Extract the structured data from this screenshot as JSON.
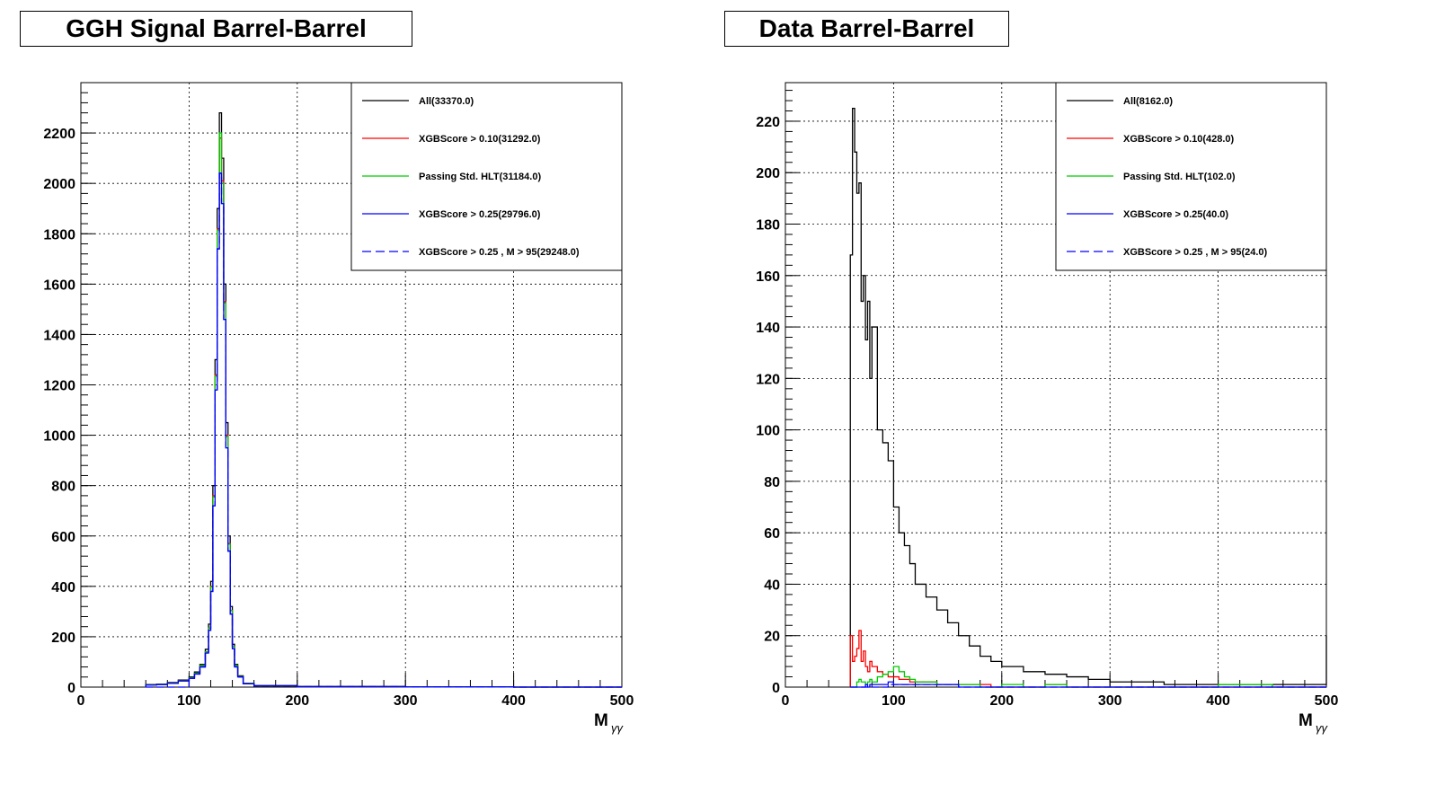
{
  "chart_data": [
    {
      "type": "line",
      "title": "GGH Signal Barrel-Barrel",
      "xlabel": "M",
      "xlabel_sub": "γγ",
      "xlim": [
        0,
        500
      ],
      "ylim": [
        0,
        2400
      ],
      "grid": true,
      "legend_position": "top-right",
      "x_ticks": [
        0,
        100,
        200,
        300,
        400,
        500
      ],
      "y_ticks": [
        0,
        200,
        400,
        600,
        800,
        1000,
        1200,
        1400,
        1600,
        1800,
        2000,
        2200
      ],
      "x": [
        60,
        70,
        80,
        90,
        100,
        105,
        110,
        115,
        118,
        120,
        122,
        124,
        126,
        128,
        130,
        132,
        134,
        136,
        138,
        140,
        142,
        145,
        150,
        160,
        200,
        300,
        400,
        500
      ],
      "series": [
        {
          "name": "All(33370.0)",
          "color": "#000000",
          "values": [
            10,
            12,
            18,
            28,
            40,
            60,
            90,
            150,
            250,
            420,
            800,
            1300,
            1900,
            2280,
            2100,
            1600,
            1050,
            600,
            320,
            170,
            90,
            45,
            15,
            6,
            2,
            1,
            0,
            0
          ]
        },
        {
          "name": "XGBScore > 0.10(31292.0)",
          "color": "#ff0000",
          "values": [
            9,
            11,
            16,
            25,
            37,
            55,
            85,
            140,
            235,
            400,
            760,
            1240,
            1820,
            2180,
            2010,
            1530,
            1000,
            570,
            305,
            160,
            85,
            42,
            14,
            5,
            2,
            1,
            0,
            0
          ]
        },
        {
          "name": "Passing Std. HLT(31184.0)",
          "color": "#00cc00",
          "values": [
            9,
            11,
            16,
            25,
            37,
            55,
            85,
            140,
            235,
            398,
            755,
            1235,
            1815,
            2200,
            2000,
            1525,
            995,
            568,
            304,
            160,
            85,
            42,
            14,
            5,
            2,
            1,
            0,
            0
          ]
        },
        {
          "name": "XGBScore > 0.25(29796.0)",
          "color": "#0000ff",
          "values": [
            8,
            10,
            15,
            24,
            35,
            52,
            80,
            135,
            225,
            380,
            720,
            1180,
            1740,
            2040,
            1920,
            1460,
            950,
            540,
            290,
            152,
            80,
            40,
            13,
            5,
            2,
            1,
            0,
            0
          ]
        },
        {
          "name": "XGBScore > 0.25 , M > 95(29248.0)",
          "color": "#0000ff",
          "dashed": true,
          "values": [
            0,
            0,
            0,
            0,
            35,
            52,
            80,
            135,
            225,
            380,
            720,
            1180,
            1740,
            2040,
            1920,
            1460,
            950,
            540,
            290,
            152,
            80,
            40,
            13,
            5,
            2,
            1,
            0,
            0
          ]
        }
      ]
    },
    {
      "type": "line",
      "title": "Data Barrel-Barrel",
      "xlabel": "M",
      "xlabel_sub": "γγ",
      "xlim": [
        0,
        500
      ],
      "ylim": [
        0,
        235
      ],
      "grid": true,
      "legend_position": "top-right",
      "x_ticks": [
        0,
        100,
        200,
        300,
        400,
        500
      ],
      "y_ticks": [
        0,
        20,
        40,
        60,
        80,
        100,
        120,
        140,
        160,
        180,
        200,
        220
      ],
      "x": [
        60,
        62,
        64,
        66,
        68,
        70,
        72,
        74,
        76,
        78,
        80,
        85,
        90,
        95,
        100,
        105,
        110,
        115,
        120,
        130,
        140,
        150,
        160,
        170,
        180,
        190,
        200,
        220,
        240,
        260,
        280,
        300,
        350,
        400,
        450,
        500
      ],
      "series": [
        {
          "name": "All(8162.0)",
          "color": "#000000",
          "values": [
            168,
            225,
            208,
            192,
            196,
            150,
            160,
            135,
            150,
            120,
            140,
            100,
            95,
            88,
            70,
            60,
            55,
            48,
            40,
            35,
            30,
            25,
            20,
            16,
            12,
            10,
            8,
            6,
            5,
            4,
            3,
            2,
            1,
            1,
            1,
            20
          ]
        },
        {
          "name": "XGBScore > 0.10(428.0)",
          "color": "#ff0000",
          "values": [
            20,
            10,
            12,
            15,
            22,
            10,
            14,
            8,
            6,
            10,
            8,
            6,
            5,
            4,
            4,
            3,
            3,
            2,
            2,
            2,
            1,
            1,
            1,
            1,
            1,
            0,
            0,
            0,
            1,
            0,
            0,
            0,
            0,
            0,
            0,
            0
          ]
        },
        {
          "name": "Passing Std. HLT(102.0)",
          "color": "#00cc00",
          "values": [
            0,
            0,
            0,
            2,
            3,
            2,
            2,
            1,
            2,
            3,
            2,
            4,
            5,
            6,
            8,
            6,
            4,
            3,
            2,
            2,
            1,
            1,
            1,
            1,
            0,
            0,
            1,
            0,
            1,
            0,
            0,
            0,
            0,
            1,
            0,
            0
          ]
        },
        {
          "name": "XGBScore > 0.25(40.0)",
          "color": "#0000ff",
          "values": [
            0,
            0,
            0,
            0,
            0,
            0,
            0,
            1,
            0,
            1,
            1,
            1,
            1,
            2,
            1,
            1,
            1,
            1,
            1,
            1,
            1,
            1,
            0,
            0,
            0,
            0,
            0,
            0,
            0,
            0,
            0,
            0,
            0,
            0,
            0,
            0
          ]
        },
        {
          "name": "XGBScore > 0.25 , M > 95(24.0)",
          "color": "#0000ff",
          "dashed": true,
          "values": [
            0,
            0,
            0,
            0,
            0,
            0,
            0,
            0,
            0,
            0,
            0,
            0,
            0,
            1,
            1,
            1,
            1,
            1,
            1,
            1,
            1,
            1,
            0,
            0,
            0,
            0,
            0,
            0,
            0,
            0,
            0,
            0,
            0,
            0,
            0,
            0
          ]
        }
      ]
    }
  ]
}
